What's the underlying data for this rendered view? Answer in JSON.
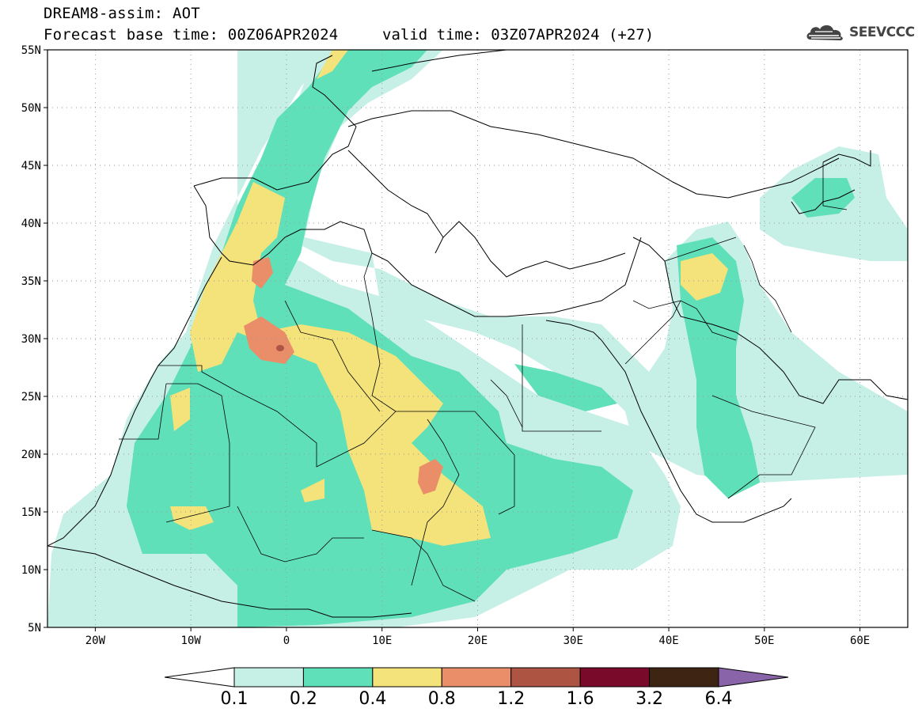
{
  "title": {
    "line1": "DREAM8-assim: AOT",
    "line2": "Forecast base time: 00Z06APR2024",
    "valid": "valid time: 03Z07APR2024 (+27)"
  },
  "logo": {
    "icon": "cloud-icon",
    "text": "SEEVCCC"
  },
  "lat_ticks": [
    {
      "lat": 55,
      "label": "55N"
    },
    {
      "lat": 50,
      "label": "50N"
    },
    {
      "lat": 45,
      "label": "45N"
    },
    {
      "lat": 40,
      "label": "40N"
    },
    {
      "lat": 35,
      "label": "35N"
    },
    {
      "lat": 30,
      "label": "30N"
    },
    {
      "lat": 25,
      "label": "25N"
    },
    {
      "lat": 20,
      "label": "20N"
    },
    {
      "lat": 15,
      "label": "15N"
    },
    {
      "lat": 10,
      "label": "10N"
    },
    {
      "lat": 5,
      "label": "5N"
    }
  ],
  "lon_ticks": [
    {
      "lon": -20,
      "label": "20W"
    },
    {
      "lon": -10,
      "label": "10W"
    },
    {
      "lon": 0,
      "label": "0"
    },
    {
      "lon": 10,
      "label": "10E"
    },
    {
      "lon": 20,
      "label": "20E"
    },
    {
      "lon": 30,
      "label": "30E"
    },
    {
      "lon": 40,
      "label": "40E"
    },
    {
      "lon": 50,
      "label": "50E"
    },
    {
      "lon": 60,
      "label": "60E"
    }
  ],
  "extent": {
    "lon_min": -25,
    "lon_max": 65,
    "lat_min": 5,
    "lat_max": 55
  },
  "colorbar": {
    "levels": [
      "0.1",
      "0.2",
      "0.4",
      "0.8",
      "1.2",
      "1.6",
      "3.2",
      "6.4"
    ],
    "colors": [
      "#ffffff",
      "#c6efe6",
      "#5fe0b8",
      "#f4e27a",
      "#e98e68",
      "#ad5443",
      "#7a0a2a",
      "#3d2413",
      "#8a64a8"
    ]
  },
  "colors": {
    "c1": "#c6efe6",
    "c2": "#5fe0b8",
    "c3": "#f4e27a",
    "c4": "#e98e68",
    "c5": "#ad5443",
    "c6": "#7a0a2a"
  }
}
